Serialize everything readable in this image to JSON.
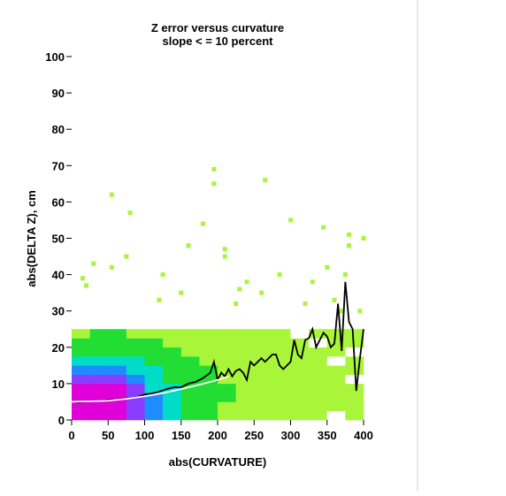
{
  "chart_data": {
    "type": "density",
    "title": "Z error versus curvature",
    "subtitle": "slope < = 10 percent",
    "x_label": "abs(CURVATURE)",
    "y_label": "abs(DELTA Z), cm",
    "xlim": [
      0,
      400
    ],
    "ylim": [
      0,
      100
    ],
    "xticks": [
      0,
      50,
      100,
      150,
      200,
      250,
      300,
      350,
      400
    ],
    "yticks": [
      0,
      10,
      20,
      30,
      40,
      50,
      60,
      70,
      80,
      90,
      100
    ],
    "bin_x": 25,
    "bin_y": 2.5,
    "colors": [
      "#ffffff",
      "#a8f53a",
      "#22dd33",
      "#00dcc8",
      "#1e8cff",
      "#8a3cff",
      "#e000d8"
    ],
    "density": [
      [
        6,
        6,
        6,
        5,
        4,
        3,
        2,
        2,
        1,
        1,
        1,
        1,
        1,
        1,
        0,
        1
      ],
      [
        6,
        6,
        6,
        5,
        4,
        3,
        2,
        2,
        1,
        1,
        1,
        1,
        1,
        1,
        1,
        1
      ],
      [
        6,
        6,
        6,
        5,
        4,
        3,
        2,
        2,
        2,
        1,
        1,
        1,
        1,
        1,
        1,
        1
      ],
      [
        6,
        6,
        6,
        5,
        3,
        3,
        2,
        2,
        2,
        1,
        1,
        1,
        1,
        1,
        1,
        1
      ],
      [
        5,
        5,
        5,
        4,
        3,
        2,
        2,
        2,
        1,
        1,
        1,
        1,
        1,
        1,
        1,
        0
      ],
      [
        4,
        4,
        4,
        3,
        3,
        2,
        2,
        2,
        1,
        1,
        1,
        1,
        1,
        1,
        1,
        1
      ],
      [
        3,
        3,
        3,
        3,
        2,
        2,
        2,
        1,
        1,
        1,
        1,
        1,
        1,
        1,
        0,
        1
      ],
      [
        2,
        2,
        2,
        2,
        2,
        2,
        1,
        1,
        1,
        1,
        1,
        1,
        1,
        1,
        1,
        0
      ],
      [
        2,
        2,
        2,
        2,
        2,
        1,
        1,
        1,
        1,
        1,
        1,
        1,
        1,
        0,
        1,
        1
      ],
      [
        1,
        2,
        2,
        1,
        1,
        1,
        1,
        1,
        1,
        1,
        1,
        1,
        0,
        1,
        1,
        1
      ]
    ],
    "outliers": {
      "x": [
        195,
        195,
        55,
        265,
        80,
        300,
        180,
        345,
        380,
        400,
        380,
        160,
        210,
        210,
        75,
        55,
        30,
        15,
        20,
        350,
        285,
        330,
        125,
        240,
        375,
        370,
        360,
        260,
        150,
        120,
        225,
        320,
        230,
        395
      ],
      "y": [
        69,
        65,
        62,
        66,
        57,
        55,
        54,
        53,
        51,
        50,
        48,
        48,
        47,
        45,
        45,
        42,
        43,
        39,
        37,
        42,
        40,
        38,
        40,
        38,
        40,
        30,
        33,
        35,
        35,
        33,
        32,
        32,
        36,
        30
      ]
    },
    "series": [
      {
        "name": "mean",
        "color": "#000000",
        "x": [
          0,
          10,
          20,
          30,
          40,
          50,
          60,
          70,
          80,
          90,
          100,
          110,
          120,
          130,
          140,
          150,
          160,
          170,
          180,
          190,
          195,
          200,
          205,
          210,
          215,
          220,
          225,
          230,
          235,
          240,
          245,
          250,
          255,
          260,
          265,
          270,
          275,
          280,
          285,
          290,
          295,
          300,
          305,
          310,
          315,
          320,
          325,
          330,
          335,
          340,
          345,
          350,
          355,
          360,
          365,
          370,
          375,
          380,
          385,
          390,
          395,
          400
        ],
        "y": [
          5,
          4.8,
          5,
          5.1,
          5.2,
          5.5,
          5.6,
          5.8,
          6,
          6.3,
          7,
          7.3,
          7.8,
          8.5,
          9,
          9,
          10,
          10.5,
          11.5,
          13,
          16,
          11,
          13,
          12,
          14,
          12,
          13.5,
          14,
          13,
          11,
          16,
          15,
          16,
          17,
          16,
          17,
          18,
          18,
          15,
          14,
          15,
          16,
          22,
          18,
          17,
          22,
          22.5,
          25,
          20,
          22,
          24,
          23,
          20,
          21,
          32,
          19,
          38,
          27,
          25,
          8,
          17,
          25
        ]
      },
      {
        "name": "smooth",
        "color": "#ffffff",
        "x": [
          0,
          25,
          50,
          75,
          100,
          125,
          150,
          175,
          200,
          215
        ],
        "y": [
          5,
          5.1,
          5.3,
          5.8,
          6.5,
          7.4,
          8.5,
          9.7,
          11,
          12
        ]
      }
    ]
  }
}
